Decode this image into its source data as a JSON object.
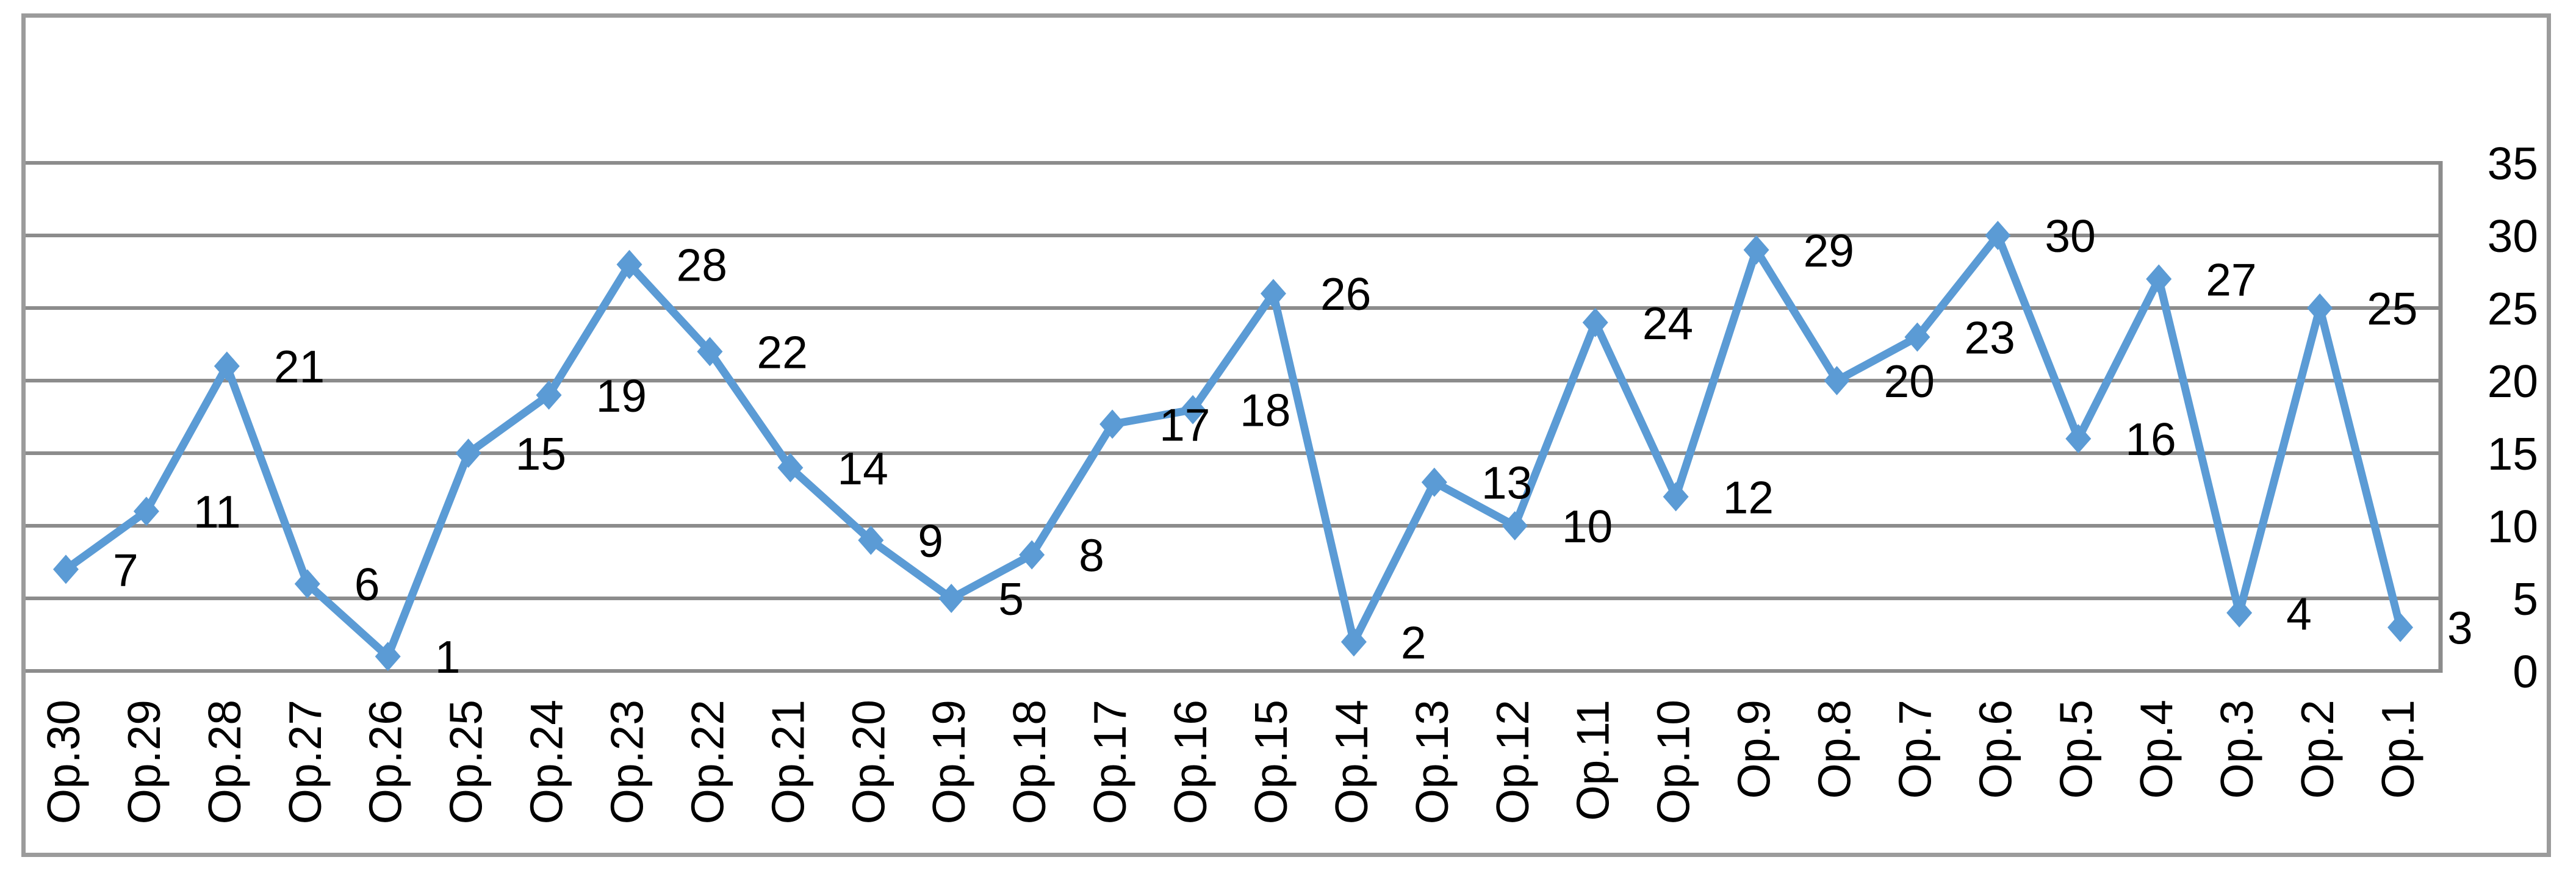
{
  "chart_data": {
    "type": "line",
    "title": "",
    "categories": [
      "Op.30",
      "Op.29",
      "Op.28",
      "Op.27",
      "Op.26",
      "Op.25",
      "Op.24",
      "Op.23",
      "Op.22",
      "Op.21",
      "Op.20",
      "Op.19",
      "Op.18",
      "Op.17",
      "Op.16",
      "Op.15",
      "Op.14",
      "Op.13",
      "Op.12",
      "Op.11",
      "Op.10",
      "Op.9",
      "Op.8",
      "Op.7",
      "Op.6",
      "Op.5",
      "Op.4",
      "Op.3",
      "Op.2",
      "Op.1"
    ],
    "values": [
      7,
      11,
      21,
      6,
      1,
      15,
      19,
      28,
      22,
      14,
      9,
      5,
      8,
      17,
      18,
      26,
      2,
      13,
      10,
      24,
      12,
      29,
      20,
      23,
      30,
      16,
      27,
      4,
      25,
      3
    ],
    "data_labels": [
      "7",
      "11",
      "21",
      "6",
      "1",
      "15",
      "19",
      "28",
      "22",
      "14",
      "9",
      "5",
      "8",
      "17",
      "18",
      "26",
      "2",
      "13",
      "10",
      "24",
      "12",
      "29",
      "20",
      "23",
      "30",
      "16",
      "27",
      "4",
      "25",
      "3"
    ],
    "xlabel": "",
    "ylabel": "",
    "ylim": [
      0,
      35
    ],
    "y_ticks": [
      0,
      5,
      10,
      15,
      20,
      25,
      30,
      35
    ],
    "y_tick_labels": [
      "0",
      "5",
      "10",
      "15",
      "20",
      "25",
      "30",
      "35"
    ],
    "y_axis_side": "right",
    "grid": "horizontal",
    "legend": "none",
    "marker": "diamond",
    "colors": {
      "series_line": "#5b9bd5",
      "marker_fill": "#5b9bd5",
      "gridline": "#8c8c8c",
      "plot_right_axis": "#8c8c8c",
      "outer_border": "#9b9b9b",
      "label_text": "#000000",
      "background": "#ffffff"
    }
  }
}
